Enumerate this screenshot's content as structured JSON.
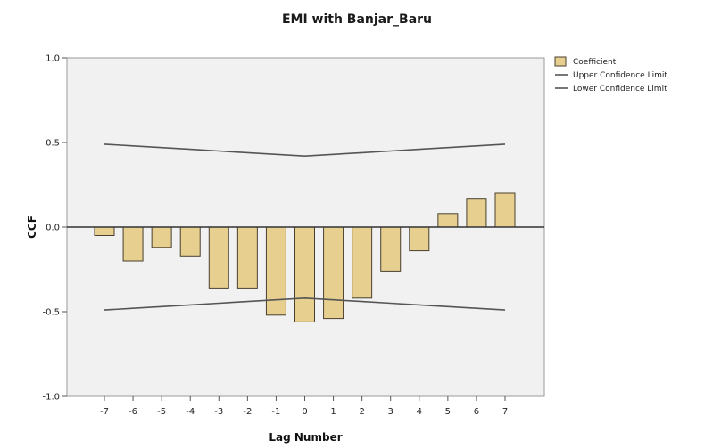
{
  "chart_data": {
    "type": "bar",
    "title": "EMI with Banjar_Baru",
    "xlabel": "Lag Number",
    "ylabel": "CCF",
    "categories": [
      "-7",
      "-6",
      "-5",
      "-4",
      "-3",
      "-2",
      "-1",
      "0",
      "1",
      "2",
      "3",
      "4",
      "5",
      "6",
      "7"
    ],
    "series": [
      {
        "name": "Coefficient",
        "values": [
          -0.05,
          -0.2,
          -0.12,
          -0.17,
          -0.36,
          -0.36,
          -0.52,
          -0.56,
          -0.54,
          -0.42,
          -0.26,
          -0.14,
          0.08,
          0.17,
          0.2
        ]
      },
      {
        "name": "Upper Confidence Limit",
        "values": [
          0.49,
          0.48,
          0.47,
          0.46,
          0.45,
          0.44,
          0.43,
          0.42,
          0.43,
          0.44,
          0.45,
          0.46,
          0.47,
          0.48,
          0.49
        ]
      },
      {
        "name": "Lower Confidence Limit",
        "values": [
          -0.49,
          -0.48,
          -0.47,
          -0.46,
          -0.45,
          -0.44,
          -0.43,
          -0.42,
          -0.43,
          -0.44,
          -0.45,
          -0.46,
          -0.47,
          -0.48,
          -0.49
        ]
      }
    ],
    "ylim": [
      -1.0,
      1.0
    ],
    "yticks": [
      "1.0",
      "0.5",
      "0.0",
      "-0.5",
      "-1.0"
    ],
    "legend_position": "top-right",
    "colors": {
      "bar_fill": "#E6CF8F",
      "bar_stroke": "#4a4030",
      "plot_bg": "#F1F1F1",
      "line": "#555555"
    }
  }
}
